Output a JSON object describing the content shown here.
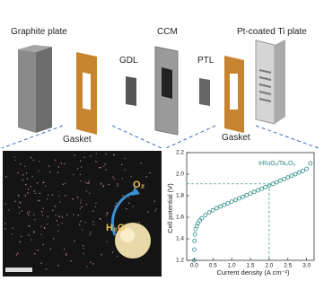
{
  "diagram": {
    "labels": {
      "graphite": "Graphite plate",
      "gdl": "GDL",
      "ccm": "CCM",
      "ptl": "PTL",
      "ti": "Pt-coated Ti plate",
      "gasket_left": "Gasket",
      "gasket_right": "Gasket"
    }
  },
  "image": {
    "o2": "O₂",
    "h2o": "H₂O"
  },
  "chart_data": {
    "type": "scatter",
    "xlabel": "Current density (A cm⁻²)",
    "ylabel": "Cell potential (V)",
    "xlim": [
      -0.2,
      3.2
    ],
    "ylim": [
      1.2,
      2.2
    ],
    "xticks": [
      {
        "value": 0,
        "label": "0.0"
      },
      0.5,
      {
        "value": 1,
        "label": "1.0"
      },
      1.5,
      {
        "value": 2,
        "label": "2.0"
      },
      2.5,
      {
        "value": 3,
        "label": "3.0"
      }
    ],
    "yticks": [
      1.2,
      1.4,
      1.6,
      1.8,
      {
        "value": 2,
        "label": "2.0"
      },
      2.2
    ],
    "guide": {
      "x": 2.0,
      "y": 1.91
    },
    "series": [
      {
        "name": "IrRuOₓ/Ta₂O₅",
        "color": "#2b8a86",
        "x": [
          0,
          0.005,
          0.01,
          0.02,
          0.04,
          0.07,
          0.1,
          0.15,
          0.2,
          0.3,
          0.4,
          0.5,
          0.6,
          0.7,
          0.8,
          0.9,
          1.0,
          1.1,
          1.2,
          1.3,
          1.4,
          1.5,
          1.6,
          1.7,
          1.8,
          1.9,
          2.0,
          2.1,
          2.2,
          2.3,
          2.4,
          2.5,
          2.6,
          2.7,
          2.8,
          2.9,
          3.0,
          3.1
        ],
        "values": [
          1.2,
          1.3,
          1.38,
          1.44,
          1.49,
          1.52,
          1.545,
          1.57,
          1.59,
          1.62,
          1.645,
          1.665,
          1.685,
          1.7,
          1.715,
          1.73,
          1.745,
          1.76,
          1.775,
          1.79,
          1.805,
          1.82,
          1.835,
          1.85,
          1.865,
          1.88,
          1.895,
          1.91,
          1.925,
          1.94,
          1.955,
          1.97,
          1.985,
          2.0,
          2.015,
          2.03,
          2.05,
          2.1
        ]
      }
    ]
  }
}
